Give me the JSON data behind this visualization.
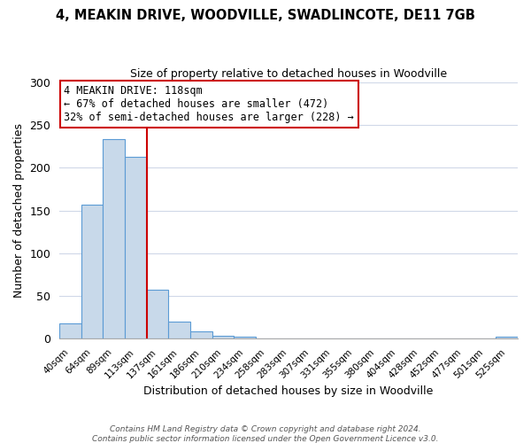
{
  "title1": "4, MEAKIN DRIVE, WOODVILLE, SWADLINCOTE, DE11 7GB",
  "title2": "Size of property relative to detached houses in Woodville",
  "xlabel": "Distribution of detached houses by size in Woodville",
  "ylabel": "Number of detached properties",
  "bar_labels": [
    "40sqm",
    "64sqm",
    "89sqm",
    "113sqm",
    "137sqm",
    "161sqm",
    "186sqm",
    "210sqm",
    "234sqm",
    "258sqm",
    "283sqm",
    "307sqm",
    "331sqm",
    "355sqm",
    "380sqm",
    "404sqm",
    "428sqm",
    "452sqm",
    "477sqm",
    "501sqm",
    "525sqm"
  ],
  "bar_values": [
    18,
    157,
    234,
    213,
    57,
    20,
    9,
    4,
    2,
    0,
    0,
    0,
    0,
    0,
    0,
    0,
    0,
    0,
    0,
    0,
    2
  ],
  "bar_color": "#c8d9ea",
  "bar_edge_color": "#5b9bd5",
  "vline_color": "#cc0000",
  "annotation_title": "4 MEAKIN DRIVE: 118sqm",
  "annotation_line1": "← 67% of detached houses are smaller (472)",
  "annotation_line2": "32% of semi-detached houses are larger (228) →",
  "annotation_box_color": "#ffffff",
  "annotation_box_edge": "#cc0000",
  "ylim": [
    0,
    300
  ],
  "yticks": [
    0,
    50,
    100,
    150,
    200,
    250,
    300
  ],
  "footer1": "Contains HM Land Registry data © Crown copyright and database right 2024.",
  "footer2": "Contains public sector information licensed under the Open Government Licence v3.0.",
  "background_color": "#ffffff",
  "grid_color": "#d0d8e8"
}
